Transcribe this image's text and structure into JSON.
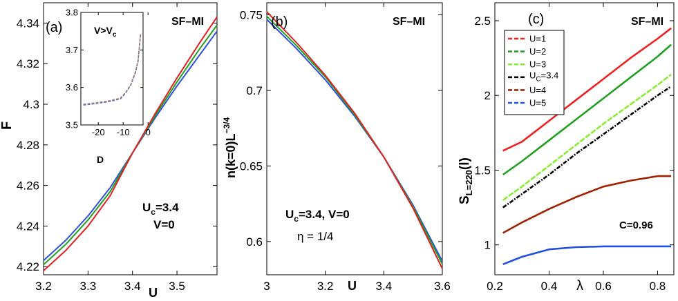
{
  "figure": "three-panel physics plot",
  "chart_data": [
    {
      "panel": "(a)",
      "type": "line",
      "tag": "SF–MI",
      "ylabel": "F",
      "xlabel": "U",
      "xlim": [
        3.2,
        3.59
      ],
      "ylim": [
        4.216,
        4.35
      ],
      "xticks": [
        "3.2",
        "3.3",
        "3.4",
        "3.5"
      ],
      "xtick_values": [
        3.2,
        3.3,
        3.4,
        3.5
      ],
      "yticks": [
        "4.22",
        "4.24",
        "4.26",
        "4.28",
        "4.3",
        "4.32",
        "4.34"
      ],
      "ytick_values": [
        4.22,
        4.24,
        4.26,
        4.28,
        4.3,
        4.32,
        4.34
      ],
      "annotation": {
        "line1": "U",
        "line1_sub": "c",
        "line1_rest": "=3.4",
        "line2": "V=0"
      },
      "series": [
        {
          "name": "blue",
          "color": "#3050e0",
          "x": [
            3.2,
            3.25,
            3.3,
            3.35,
            3.4,
            3.45,
            3.5,
            3.55,
            3.59
          ],
          "values": [
            4.223,
            4.233,
            4.245,
            4.259,
            4.276,
            4.293,
            4.309,
            4.324,
            4.336
          ]
        },
        {
          "name": "green",
          "color": "#20a020",
          "x": [
            3.2,
            3.25,
            3.3,
            3.35,
            3.4,
            3.45,
            3.5,
            3.55,
            3.59
          ],
          "values": [
            4.221,
            4.231,
            4.243,
            4.257,
            4.276,
            4.294,
            4.311,
            4.327,
            4.339
          ]
        },
        {
          "name": "red",
          "color": "#e02020",
          "x": [
            3.2,
            3.25,
            3.3,
            3.35,
            3.4,
            3.45,
            3.5,
            3.55,
            3.59
          ],
          "values": [
            4.218,
            4.228,
            4.24,
            4.255,
            4.276,
            4.295,
            4.313,
            4.33,
            4.343
          ]
        }
      ],
      "inset": {
        "type": "line",
        "title_main": "V>V",
        "title_sub": "c",
        "xlabel": "D",
        "xlim": [
          -27,
          -2
        ],
        "ylim": [
          3.5,
          3.8
        ],
        "xticks": [
          "-20",
          "-10",
          "0"
        ],
        "xtick_values": [
          -20,
          -10,
          0
        ],
        "yticks": [
          "3.5",
          "3.6",
          "3.7",
          "3.8"
        ],
        "ytick_values": [
          3.5,
          3.6,
          3.7,
          3.8
        ],
        "series": [
          {
            "name": "blue dashed",
            "color": "#6070d0",
            "x": [
              -26,
              -20,
              -15,
              -11,
              -9,
              -7,
              -5,
              -4,
              -3
            ],
            "values": [
              3.553,
              3.558,
              3.563,
              3.57,
              3.585,
              3.605,
              3.64,
              3.67,
              3.742
            ]
          },
          {
            "name": "gray dashed",
            "color": "#a08070",
            "x": [
              -26,
              -20,
              -15,
              -11,
              -9,
              -7,
              -5,
              -4,
              -3
            ],
            "values": [
              3.555,
              3.56,
              3.565,
              3.572,
              3.587,
              3.607,
              3.643,
              3.673,
              3.745
            ]
          }
        ]
      }
    },
    {
      "panel": "(b)",
      "type": "line",
      "tag": "SF–MI",
      "ylabel_main": "n(k=0)L",
      "ylabel_sup": "−3/4",
      "xlabel": "U",
      "xlim": [
        3.0,
        3.6
      ],
      "ylim": [
        0.578,
        0.758
      ],
      "xticks": [
        "3",
        "3.2",
        "3.4",
        "3.6"
      ],
      "xtick_values": [
        3.0,
        3.2,
        3.4,
        3.6
      ],
      "yticks": [
        "0.6",
        "0.65",
        "0.7",
        "0.75"
      ],
      "ytick_values": [
        0.6,
        0.65,
        0.7,
        0.75
      ],
      "annotation": {
        "line1": "U",
        "line1_sub": "c",
        "line1_rest": "=3.4, V=0",
        "line2": "η = 1/4"
      },
      "series": [
        {
          "name": "blue",
          "color": "#3050e0",
          "x": [
            3.0,
            3.1,
            3.2,
            3.3,
            3.4,
            3.5,
            3.6
          ],
          "values": [
            0.747,
            0.728,
            0.707,
            0.683,
            0.656,
            0.624,
            0.587
          ]
        },
        {
          "name": "green",
          "color": "#20a020",
          "x": [
            3.0,
            3.1,
            3.2,
            3.3,
            3.4,
            3.5,
            3.6
          ],
          "values": [
            0.749,
            0.73,
            0.709,
            0.684,
            0.656,
            0.623,
            0.585
          ]
        },
        {
          "name": "red",
          "color": "#e02020",
          "x": [
            3.0,
            3.1,
            3.2,
            3.3,
            3.4,
            3.5,
            3.6
          ],
          "values": [
            0.752,
            0.732,
            0.71,
            0.685,
            0.656,
            0.622,
            0.582
          ]
        }
      ]
    },
    {
      "panel": "(c)",
      "type": "line",
      "tag": "SF–MI",
      "ylabel_main": "S",
      "ylabel_sub": "L=220",
      "ylabel_rest": "(l)",
      "xlabel": "λ",
      "xlim": [
        0.2,
        0.86
      ],
      "ylim": [
        0.8,
        2.62
      ],
      "xticks": [
        "0.2",
        "0.4",
        "0.6",
        "0.8"
      ],
      "xtick_values": [
        0.2,
        0.4,
        0.6,
        0.8
      ],
      "yticks": [
        "1",
        "1.5",
        "2",
        "2.5"
      ],
      "ytick_values": [
        1,
        1.5,
        2,
        2.5
      ],
      "annotation": "C=0.96",
      "legend": [
        {
          "label": "U=1",
          "color": "#ee2020",
          "dash": "6,3"
        },
        {
          "label": "U=2",
          "color": "#20a020",
          "dash": "6,3"
        },
        {
          "label": "U=3",
          "color": "#88ee30",
          "dash": "6,3"
        },
        {
          "label_main": "U",
          "label_sub": "C",
          "label_rest": "=3.4",
          "color": "#000000",
          "dash": "6,3"
        },
        {
          "label": "U=4",
          "color": "#a02000",
          "dash": "6,3"
        },
        {
          "label": "U=5",
          "color": "#2050e0",
          "dash": "6,3"
        }
      ],
      "series": [
        {
          "name": "U=1",
          "color": "#ee2020",
          "dash": "",
          "x": [
            0.23,
            0.3,
            0.4,
            0.5,
            0.6,
            0.7,
            0.8,
            0.85
          ],
          "values": [
            1.63,
            1.69,
            1.83,
            1.97,
            2.11,
            2.25,
            2.38,
            2.45
          ]
        },
        {
          "name": "U=2",
          "color": "#20a020",
          "dash": "",
          "x": [
            0.23,
            0.3,
            0.4,
            0.5,
            0.6,
            0.7,
            0.8,
            0.85
          ],
          "values": [
            1.47,
            1.56,
            1.7,
            1.84,
            1.98,
            2.12,
            2.26,
            2.34
          ]
        },
        {
          "name": "U=3",
          "color": "#88ee30",
          "dash": "8,2",
          "x": [
            0.23,
            0.3,
            0.4,
            0.5,
            0.6,
            0.7,
            0.8,
            0.85
          ],
          "values": [
            1.3,
            1.39,
            1.53,
            1.67,
            1.81,
            1.94,
            2.07,
            2.14
          ]
        },
        {
          "name": "U_C=3.4",
          "color": "#000000",
          "dash": "6,2,2,2",
          "x": [
            0.23,
            0.3,
            0.4,
            0.5,
            0.6,
            0.7,
            0.8,
            0.85
          ],
          "values": [
            1.25,
            1.34,
            1.47,
            1.61,
            1.74,
            1.87,
            2.0,
            2.06
          ]
        },
        {
          "name": "U=4",
          "color": "#a02000",
          "dash": "",
          "x": [
            0.23,
            0.3,
            0.4,
            0.5,
            0.6,
            0.7,
            0.8,
            0.85
          ],
          "values": [
            1.08,
            1.15,
            1.24,
            1.32,
            1.39,
            1.43,
            1.46,
            1.46
          ]
        },
        {
          "name": "U=5",
          "color": "#2050e0",
          "dash": "",
          "x": [
            0.23,
            0.3,
            0.4,
            0.5,
            0.6,
            0.7,
            0.8,
            0.85
          ],
          "values": [
            0.87,
            0.92,
            0.97,
            0.985,
            0.99,
            0.99,
            0.99,
            0.99
          ]
        }
      ]
    }
  ]
}
